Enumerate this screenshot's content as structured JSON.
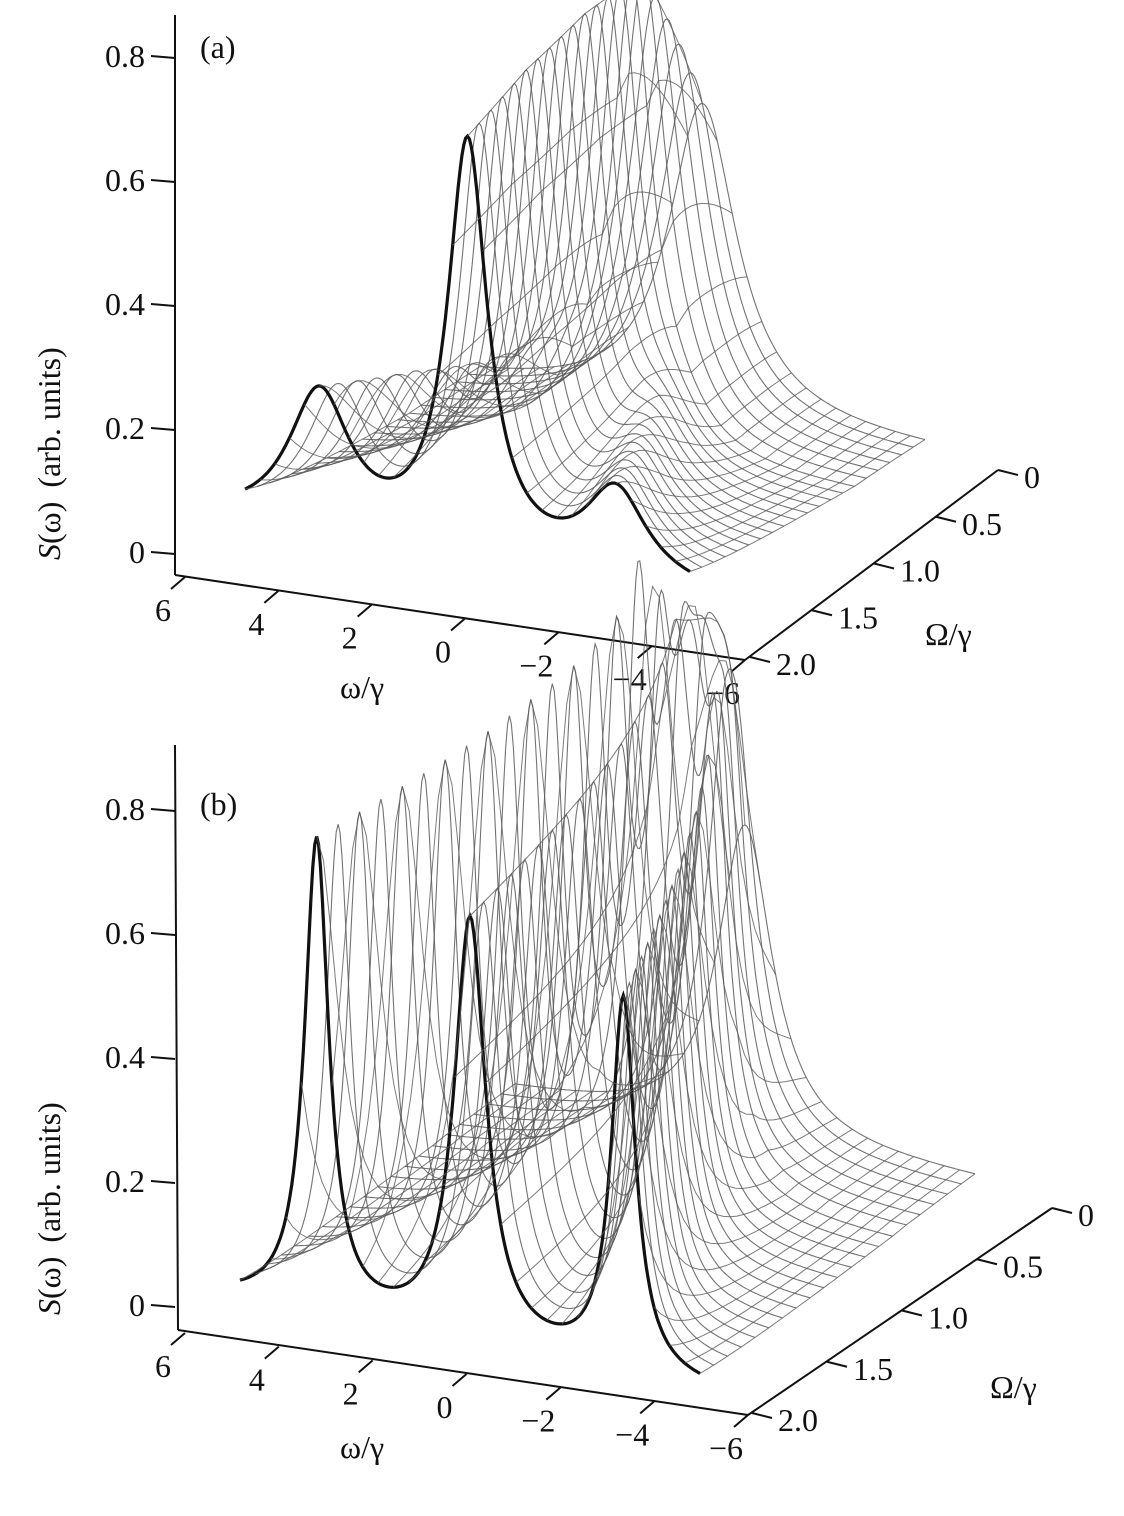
{
  "chart_data": [
    {
      "type": "surface",
      "panel_label": "(a)",
      "zlabel_symbol": "S",
      "zlabel_arg": "(ω)",
      "zlabel_units": "(arb. units)",
      "xlabel": "ω/γ",
      "ylabel": "Ω/γ",
      "x_ticks": [
        "6",
        "4",
        "2",
        "0",
        "−2",
        "−4",
        "−6"
      ],
      "x_tick_values": [
        6,
        4,
        2,
        0,
        -2,
        -4,
        -6
      ],
      "y_ticks": [
        "0",
        "0.5",
        "1.0",
        "1.5",
        "2.0"
      ],
      "y_tick_values": [
        0,
        0.5,
        1.0,
        1.5,
        2.0
      ],
      "z_ticks": [
        "0",
        "0.2",
        "0.4",
        "0.6",
        "0.8"
      ],
      "z_tick_values": [
        0,
        0.2,
        0.4,
        0.6,
        0.8
      ],
      "xlim": [
        -6,
        6
      ],
      "ylim": [
        0,
        2
      ],
      "zlim": [
        0,
        0.8
      ],
      "Omega_samples": [
        0,
        0.5,
        1.0,
        1.5,
        2.0
      ],
      "center_peak": [
        0.5,
        0.72,
        0.72,
        0.7,
        0.66
      ],
      "left_sideband_peak": [
        0.0,
        0.05,
        0.12,
        0.18,
        0.22
      ],
      "right_sideband_peak": [
        0.0,
        0.04,
        0.09,
        0.12,
        0.14
      ],
      "sideband_position_over_Omega": 2,
      "front_curve_Omega": 2.0,
      "line_color": "#5a5a5a",
      "front_curve_color": "#111111"
    },
    {
      "type": "surface",
      "panel_label": "(b)",
      "zlabel_symbol": "S",
      "zlabel_arg": "(ω)",
      "zlabel_units": "(arb. units)",
      "xlabel": "ω/γ",
      "ylabel": "Ω/γ",
      "x_ticks": [
        "6",
        "4",
        "2",
        "0",
        "−2",
        "−4",
        "−6"
      ],
      "x_tick_values": [
        6,
        4,
        2,
        0,
        -2,
        -4,
        -6
      ],
      "y_ticks": [
        "0",
        "0.5",
        "1.0",
        "1.5",
        "2.0"
      ],
      "y_tick_values": [
        0,
        0.5,
        1.0,
        1.5,
        2.0
      ],
      "z_ticks": [
        "0",
        "0.2",
        "0.4",
        "0.6",
        "0.8"
      ],
      "z_tick_values": [
        0,
        0.2,
        0.4,
        0.6,
        0.8
      ],
      "xlim": [
        -6,
        6
      ],
      "ylim": [
        0,
        2
      ],
      "zlim": [
        0,
        0.8
      ],
      "Omega_samples": [
        0,
        0.5,
        1.0,
        1.5,
        2.0
      ],
      "center_peak": [
        0.5,
        0.74,
        0.72,
        0.7,
        0.68
      ],
      "left_sideband_peak": [
        0.0,
        0.8,
        0.8,
        0.78,
        0.76
      ],
      "right_sideband_peak": [
        0.0,
        0.6,
        0.6,
        0.6,
        0.6
      ],
      "sideband_position_over_Omega": 2,
      "front_curve_Omega": 2.0,
      "line_color": "#5a5a5a",
      "front_curve_color": "#111111"
    }
  ]
}
